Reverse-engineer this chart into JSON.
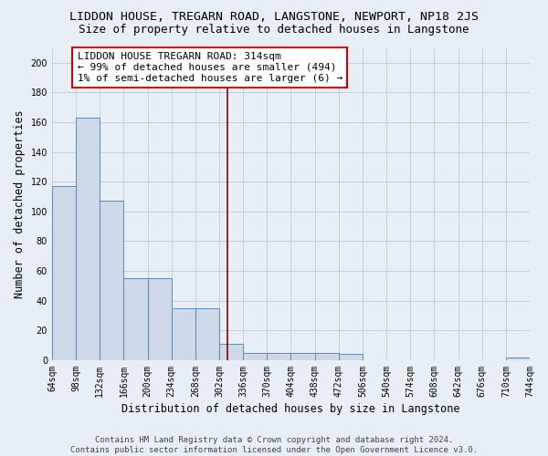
{
  "title": "LIDDON HOUSE, TREGARN ROAD, LANGSTONE, NEWPORT, NP18 2JS",
  "subtitle": "Size of property relative to detached houses in Langstone",
  "xlabel": "Distribution of detached houses by size in Langstone",
  "ylabel": "Number of detached properties",
  "bar_edges": [
    64,
    98,
    132,
    166,
    200,
    234,
    268,
    302,
    336,
    370,
    404,
    438,
    472,
    506,
    540,
    574,
    608,
    642,
    676,
    710,
    744
  ],
  "bar_heights": [
    117,
    163,
    107,
    55,
    55,
    35,
    35,
    11,
    5,
    5,
    5,
    5,
    4,
    0,
    0,
    0,
    0,
    0,
    0,
    2
  ],
  "bar_color": "#cdd9e8",
  "bar_edge_color": "#5b8ab5",
  "tick_labels": [
    "64sqm",
    "98sqm",
    "132sqm",
    "166sqm",
    "200sqm",
    "234sqm",
    "268sqm",
    "302sqm",
    "336sqm",
    "370sqm",
    "404sqm",
    "438sqm",
    "472sqm",
    "506sqm",
    "540sqm",
    "574sqm",
    "608sqm",
    "642sqm",
    "676sqm",
    "710sqm",
    "744sqm"
  ],
  "vline_x": 314,
  "vline_color": "#8b0000",
  "annotation_text": "LIDDON HOUSE TREGARN ROAD: 314sqm\n← 99% of detached houses are smaller (494)\n1% of semi-detached houses are larger (6) →",
  "annotation_box_color": "white",
  "annotation_box_edge_color": "#cc0000",
  "ylim": [
    0,
    210
  ],
  "yticks": [
    0,
    20,
    40,
    60,
    80,
    100,
    120,
    140,
    160,
    180,
    200
  ],
  "footnote": "Contains HM Land Registry data © Crown copyright and database right 2024.\nContains public sector information licensed under the Open Government Licence v3.0.",
  "bg_color": "#e8eef5",
  "plot_bg_color": "#e8eef5",
  "title_fontsize": 9.5,
  "subtitle_fontsize": 9,
  "axis_label_fontsize": 8.5,
  "tick_fontsize": 7,
  "annotation_fontsize": 8,
  "footnote_fontsize": 6.5,
  "grid_color": "#c0c8d8"
}
